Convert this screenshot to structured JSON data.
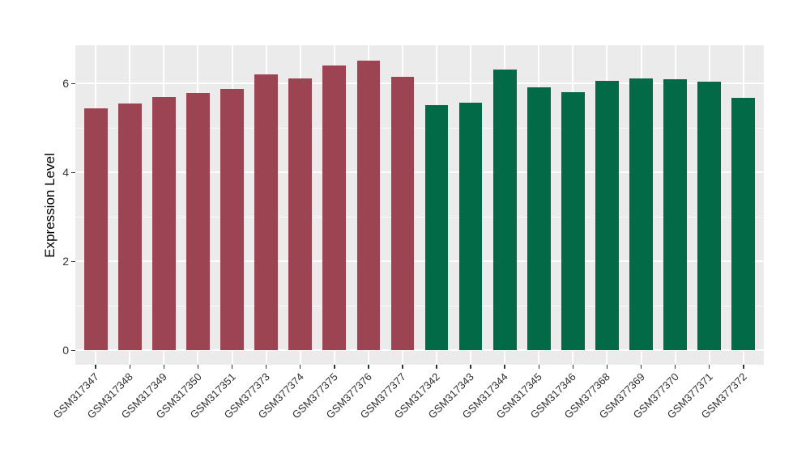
{
  "figure": {
    "background": "#FFFFFF",
    "panel_background": "#EBEBEB",
    "grid_color": "#FFFFFF",
    "tick_color": "#333333",
    "axis_text_color": "#333333",
    "axis_title_color": "#000000"
  },
  "chart_data": {
    "type": "bar",
    "title": "",
    "xlabel": "",
    "ylabel": "Expression Level",
    "grid": true,
    "legend": "none",
    "ylim": [
      -0.32,
      6.86
    ],
    "y_ticks": [
      0,
      2,
      4,
      6
    ],
    "y_minor_ticks": [
      1,
      3,
      5
    ],
    "group_colors": {
      "maroon": "#9C4452",
      "green": "#036A48"
    },
    "bars": [
      {
        "label": "GSM317347",
        "value": 5.45,
        "group": "maroon"
      },
      {
        "label": "GSM317348",
        "value": 5.55,
        "group": "maroon"
      },
      {
        "label": "GSM317349",
        "value": 5.7,
        "group": "maroon"
      },
      {
        "label": "GSM317350",
        "value": 5.79,
        "group": "maroon"
      },
      {
        "label": "GSM317351",
        "value": 5.88,
        "group": "maroon"
      },
      {
        "label": "GSM377373",
        "value": 6.2,
        "group": "maroon"
      },
      {
        "label": "GSM377374",
        "value": 6.11,
        "group": "maroon"
      },
      {
        "label": "GSM377375",
        "value": 6.41,
        "group": "maroon"
      },
      {
        "label": "GSM377376",
        "value": 6.52,
        "group": "maroon"
      },
      {
        "label": "GSM377377",
        "value": 6.16,
        "group": "maroon"
      },
      {
        "label": "GSM317342",
        "value": 5.52,
        "group": "green"
      },
      {
        "label": "GSM317343",
        "value": 5.57,
        "group": "green"
      },
      {
        "label": "GSM317344",
        "value": 6.32,
        "group": "green"
      },
      {
        "label": "GSM317345",
        "value": 5.91,
        "group": "green"
      },
      {
        "label": "GSM317346",
        "value": 5.81,
        "group": "green"
      },
      {
        "label": "GSM377368",
        "value": 6.06,
        "group": "green"
      },
      {
        "label": "GSM377369",
        "value": 6.12,
        "group": "green"
      },
      {
        "label": "GSM377370",
        "value": 6.1,
        "group": "green"
      },
      {
        "label": "GSM377371",
        "value": 6.05,
        "group": "green"
      },
      {
        "label": "GSM377372",
        "value": 5.68,
        "group": "green"
      }
    ]
  }
}
